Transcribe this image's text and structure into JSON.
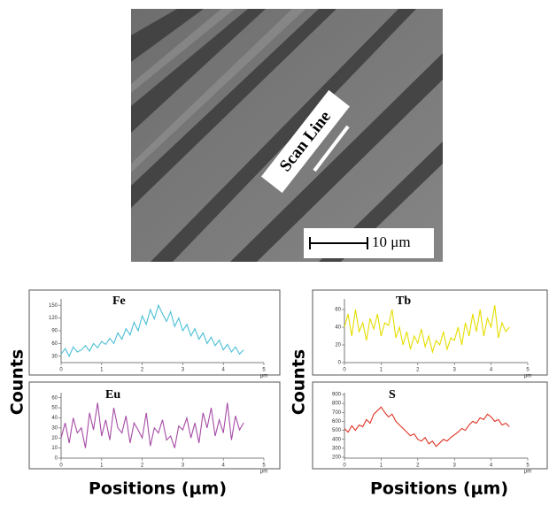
{
  "image": {
    "annotation": "Scan Line",
    "scale_bar": "10 μm"
  },
  "figure_labels": {
    "left_ylabel": "Counts",
    "left_xlabel": "Positions (μm)",
    "right_ylabel": "Counts",
    "right_xlabel": "Positions (μm)"
  },
  "chart_data": [
    {
      "type": "line",
      "title": "Fe",
      "xlabel": "μm",
      "color": "#4cbfd6",
      "x": [
        0,
        0.1,
        0.2,
        0.3,
        0.4,
        0.5,
        0.6,
        0.7,
        0.8,
        0.9,
        1,
        1.1,
        1.2,
        1.3,
        1.4,
        1.5,
        1.6,
        1.7,
        1.8,
        1.9,
        2,
        2.1,
        2.2,
        2.3,
        2.4,
        2.5,
        2.6,
        2.7,
        2.8,
        2.9,
        3,
        3.1,
        3.2,
        3.3,
        3.4,
        3.5,
        3.6,
        3.7,
        3.8,
        3.9,
        4,
        4.1,
        4.2,
        4.3,
        4.4,
        4.5
      ],
      "values": [
        35,
        48,
        30,
        52,
        40,
        45,
        55,
        42,
        60,
        50,
        65,
        58,
        72,
        60,
        85,
        70,
        95,
        80,
        110,
        90,
        125,
        105,
        140,
        118,
        150,
        130,
        112,
        135,
        100,
        120,
        90,
        105,
        78,
        95,
        70,
        85,
        60,
        75,
        55,
        68,
        45,
        58,
        40,
        52,
        35,
        45
      ],
      "xlim": [
        0,
        5
      ],
      "xticks": [
        0,
        1,
        2,
        3,
        4,
        5
      ],
      "ylim": [
        15,
        165
      ],
      "yticks": [
        30,
        60,
        90,
        120,
        150
      ]
    },
    {
      "type": "line",
      "title": "Eu",
      "xlabel": "μm",
      "color": "#a64ca6",
      "x": [
        0,
        0.1,
        0.2,
        0.3,
        0.4,
        0.5,
        0.6,
        0.7,
        0.8,
        0.9,
        1,
        1.1,
        1.2,
        1.3,
        1.4,
        1.5,
        1.6,
        1.7,
        1.8,
        1.9,
        2,
        2.1,
        2.2,
        2.3,
        2.4,
        2.5,
        2.6,
        2.7,
        2.8,
        2.9,
        3,
        3.1,
        3.2,
        3.3,
        3.4,
        3.5,
        3.6,
        3.7,
        3.8,
        3.9,
        4,
        4.1,
        4.2,
        4.3,
        4.4,
        4.5
      ],
      "values": [
        20,
        35,
        15,
        40,
        25,
        30,
        10,
        45,
        28,
        55,
        22,
        38,
        18,
        50,
        30,
        25,
        42,
        15,
        35,
        28,
        20,
        45,
        12,
        30,
        25,
        38,
        18,
        22,
        10,
        32,
        28,
        40,
        20,
        35,
        15,
        45,
        30,
        50,
        22,
        38,
        25,
        55,
        18,
        42,
        28,
        35
      ],
      "xlim": [
        0,
        5
      ],
      "xticks": [
        0,
        1,
        2,
        3,
        4,
        5
      ],
      "ylim": [
        0,
        65
      ],
      "yticks": [
        0,
        10,
        20,
        30,
        40,
        50,
        60
      ]
    },
    {
      "type": "line",
      "title": "Tb",
      "xlabel": "μm",
      "color": "#e6de00",
      "x": [
        0,
        0.1,
        0.2,
        0.3,
        0.4,
        0.5,
        0.6,
        0.7,
        0.8,
        0.9,
        1,
        1.1,
        1.2,
        1.3,
        1.4,
        1.5,
        1.6,
        1.7,
        1.8,
        1.9,
        2,
        2.1,
        2.2,
        2.3,
        2.4,
        2.5,
        2.6,
        2.7,
        2.8,
        2.9,
        3,
        3.1,
        3.2,
        3.3,
        3.4,
        3.5,
        3.6,
        3.7,
        3.8,
        3.9,
        4,
        4.1,
        4.2,
        4.3,
        4.4,
        4.5
      ],
      "values": [
        40,
        55,
        30,
        60,
        35,
        45,
        25,
        50,
        38,
        55,
        30,
        45,
        42,
        60,
        28,
        40,
        20,
        35,
        15,
        30,
        22,
        38,
        18,
        30,
        12,
        25,
        20,
        35,
        15,
        28,
        25,
        40,
        20,
        45,
        30,
        55,
        35,
        60,
        30,
        50,
        40,
        65,
        28,
        45,
        35,
        40
      ],
      "xlim": [
        0,
        5
      ],
      "xticks": [
        0,
        1,
        2,
        3,
        4,
        5
      ],
      "ylim": [
        0,
        72
      ],
      "yticks": [
        0,
        20,
        40,
        60
      ]
    },
    {
      "type": "line",
      "title": "S",
      "xlabel": "μm",
      "color": "#e03224",
      "x": [
        0,
        0.1,
        0.2,
        0.3,
        0.4,
        0.5,
        0.6,
        0.7,
        0.8,
        0.9,
        1,
        1.1,
        1.2,
        1.3,
        1.4,
        1.5,
        1.6,
        1.7,
        1.8,
        1.9,
        2,
        2.1,
        2.2,
        2.3,
        2.4,
        2.5,
        2.6,
        2.7,
        2.8,
        2.9,
        3,
        3.1,
        3.2,
        3.3,
        3.4,
        3.5,
        3.6,
        3.7,
        3.8,
        3.9,
        4,
        4.1,
        4.2,
        4.3,
        4.4,
        4.5
      ],
      "values": [
        520,
        480,
        550,
        500,
        560,
        540,
        620,
        580,
        680,
        720,
        760,
        700,
        650,
        680,
        600,
        560,
        520,
        480,
        440,
        460,
        400,
        380,
        420,
        350,
        380,
        320,
        360,
        400,
        380,
        420,
        450,
        480,
        520,
        500,
        560,
        600,
        580,
        640,
        620,
        680,
        650,
        600,
        620,
        560,
        580,
        540
      ],
      "xlim": [
        0,
        5
      ],
      "xticks": [
        0,
        1,
        2,
        3,
        4,
        5
      ],
      "ylim": [
        190,
        920
      ],
      "yticks": [
        200,
        300,
        400,
        500,
        600,
        700,
        800,
        900
      ]
    }
  ]
}
